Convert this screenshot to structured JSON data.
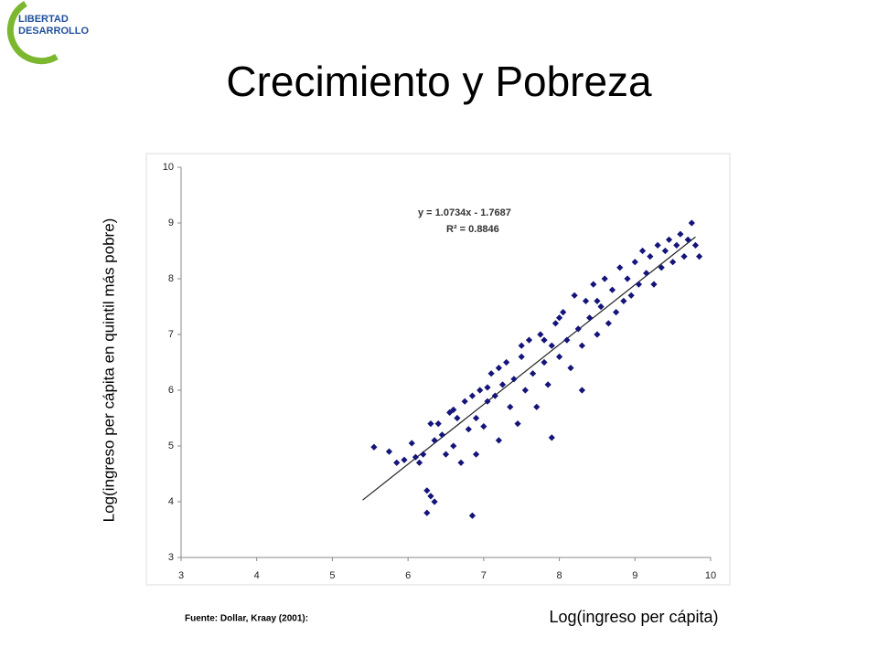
{
  "logo": [
    "LIBERTAD",
    "DESARROLLO"
  ],
  "source": "Fuente: Dollar, Kraay (2001):",
  "chart_data": {
    "type": "scatter",
    "title": "Crecimiento y Pobreza",
    "x_label": "Log(ingreso per cápita)",
    "y_label": "Log(ingreso per cápita en quintil más pobre)",
    "annotations": [
      "y = 1.0734x - 1.7687",
      "R² = 0.8846"
    ],
    "color": "#14147a",
    "trendline": {
      "x": [
        5.4,
        9.8
      ],
      "values": [
        4.03,
        8.75
      ],
      "color": "#222222"
    },
    "x": [
      5.55,
      5.75,
      5.85,
      5.95,
      6.05,
      6.1,
      6.15,
      6.2,
      6.25,
      6.3,
      6.25,
      6.35,
      6.3,
      6.35,
      6.4,
      6.45,
      6.5,
      6.55,
      6.6,
      6.65,
      6.7,
      6.75,
      6.8,
      6.85,
      6.85,
      6.9,
      6.9,
      6.95,
      7.0,
      7.05,
      7.1,
      7.15,
      7.2,
      7.25,
      7.3,
      7.35,
      7.4,
      7.45,
      7.5,
      7.55,
      7.6,
      7.65,
      7.7,
      7.75,
      7.8,
      7.85,
      7.9,
      7.9,
      7.95,
      8.0,
      8.05,
      8.1,
      8.15,
      8.2,
      8.25,
      8.3,
      8.3,
      8.35,
      8.4,
      8.45,
      8.5,
      8.55,
      8.6,
      8.65,
      8.7,
      8.75,
      8.8,
      8.85,
      8.9,
      8.95,
      9.0,
      9.05,
      9.1,
      9.15,
      9.2,
      9.25,
      9.3,
      9.35,
      9.4,
      9.45,
      9.5,
      9.55,
      9.6,
      9.65,
      9.7,
      9.75,
      9.8,
      9.85,
      7.05,
      7.5,
      8.0,
      8.5,
      6.6,
      7.2,
      7.8
    ],
    "values": [
      4.98,
      4.9,
      4.7,
      4.75,
      5.05,
      4.8,
      4.7,
      4.85,
      4.2,
      4.1,
      3.8,
      4.0,
      5.4,
      5.1,
      5.4,
      5.2,
      4.85,
      5.6,
      5.0,
      5.5,
      4.7,
      5.8,
      5.3,
      3.75,
      5.9,
      5.5,
      4.85,
      6.0,
      5.35,
      5.8,
      6.3,
      5.9,
      5.1,
      6.1,
      6.5,
      5.7,
      6.2,
      5.4,
      6.6,
      6.0,
      6.9,
      6.3,
      5.7,
      7.0,
      6.5,
      6.1,
      5.15,
      6.8,
      7.2,
      6.6,
      7.4,
      6.9,
      6.4,
      7.7,
      7.1,
      6.0,
      6.8,
      7.6,
      7.3,
      7.9,
      7.0,
      7.5,
      8.0,
      7.2,
      7.8,
      7.4,
      8.2,
      7.6,
      8.0,
      7.7,
      8.3,
      7.9,
      8.5,
      8.1,
      8.4,
      7.9,
      8.6,
      8.2,
      8.5,
      8.7,
      8.3,
      8.6,
      8.8,
      8.4,
      8.7,
      9.0,
      8.6,
      8.4,
      6.05,
      6.8,
      7.3,
      7.6,
      5.65,
      6.4,
      6.9
    ],
    "xlim": [
      3,
      10
    ],
    "xticks": [
      3,
      4,
      5,
      6,
      7,
      8,
      9,
      10
    ],
    "ylim": [
      3,
      10
    ],
    "yticks": [
      3,
      4,
      5,
      6,
      7,
      8,
      9,
      10
    ]
  }
}
